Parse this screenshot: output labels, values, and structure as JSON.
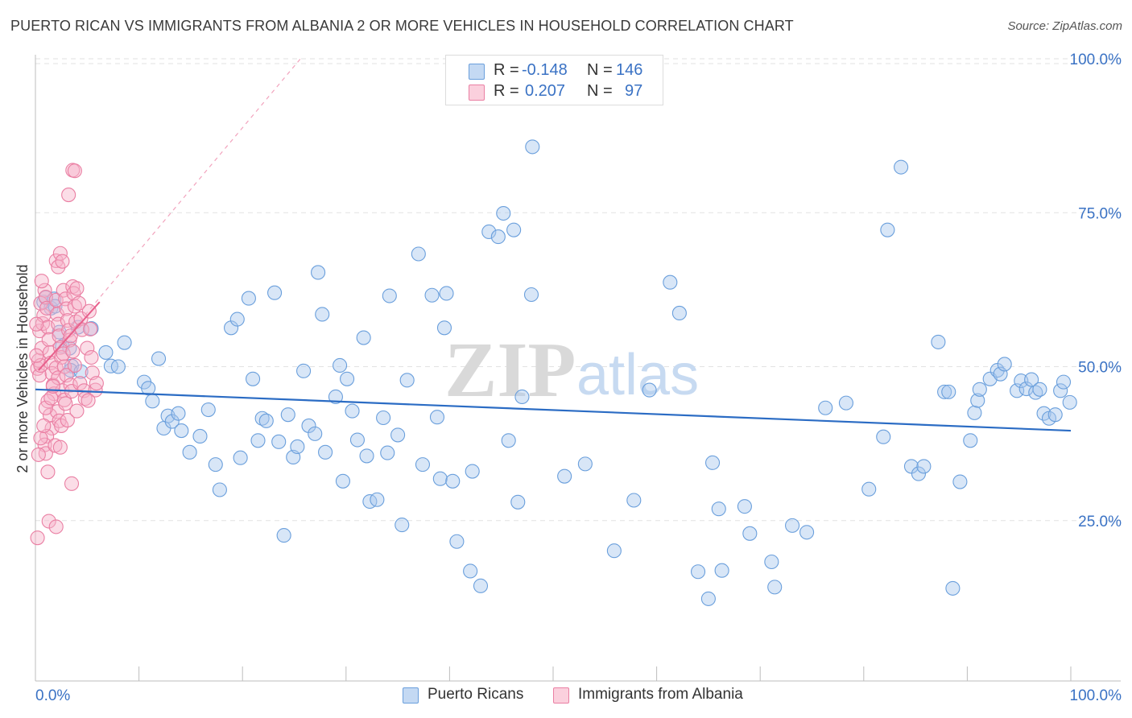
{
  "header": {
    "title": "PUERTO RICAN VS IMMIGRANTS FROM ALBANIA 2 OR MORE VEHICLES IN HOUSEHOLD CORRELATION CHART",
    "source": "Source: ZipAtlas.com"
  },
  "stats_legend": [
    {
      "r_label": "R =",
      "r_value": "-0.148",
      "n_label": "N =",
      "n_value": "146",
      "color": "#a9c8ee"
    },
    {
      "r_label": "R =",
      "r_value": "0.207",
      "n_label": "N =",
      "n_value": "97",
      "color": "#f6b4c9"
    }
  ],
  "watermark": {
    "zip": "ZIP",
    "atlas": "atlas"
  },
  "chart_data": {
    "type": "scatter",
    "title": "PUERTO RICAN VS IMMIGRANTS FROM ALBANIA 2 OR MORE VEHICLES IN HOUSEHOLD CORRELATION CHART",
    "xlabel": "",
    "ylabel": "2 or more Vehicles in Household",
    "xlim": [
      0,
      100
    ],
    "ylim": [
      0,
      100
    ],
    "x_tick_labels": [
      "0.0%",
      "100.0%"
    ],
    "y_tick_labels": [
      "100.0%",
      "75.0%",
      "50.0%",
      "25.0%"
    ],
    "y_ticks": [
      100,
      75,
      50,
      25
    ],
    "grid": "horizontal dashed",
    "legend_position": "bottom",
    "series": [
      {
        "name": "Puerto Ricans",
        "color": "#a9c8ee",
        "stroke": "#6a9fdc",
        "trend": {
          "x": [
            0,
            100
          ],
          "y": [
            46.3,
            39.6
          ],
          "color": "#2b6cc4"
        },
        "points": [
          [
            0.8,
            60.5
          ],
          [
            1.0,
            61.2
          ],
          [
            1.5,
            59.5
          ],
          [
            1.8,
            61.0
          ],
          [
            1.9,
            59.8
          ],
          [
            2.3,
            55.6
          ],
          [
            2.6,
            53.3
          ],
          [
            3.3,
            53.0
          ],
          [
            3.5,
            50.1
          ],
          [
            4.1,
            56.4
          ],
          [
            3.4,
            49.4
          ],
          [
            4.4,
            49.2
          ],
          [
            5.4,
            56.2
          ],
          [
            6.8,
            52.3
          ],
          [
            7.3,
            50.1
          ],
          [
            8.6,
            53.9
          ],
          [
            8.0,
            50.0
          ],
          [
            10.5,
            47.5
          ],
          [
            10.9,
            46.5
          ],
          [
            11.3,
            44.4
          ],
          [
            11.9,
            51.3
          ],
          [
            12.8,
            42.0
          ],
          [
            12.4,
            40.0
          ],
          [
            13.2,
            41.1
          ],
          [
            13.8,
            42.4
          ],
          [
            14.1,
            39.6
          ],
          [
            14.9,
            36.1
          ],
          [
            15.9,
            38.7
          ],
          [
            16.7,
            43.0
          ],
          [
            17.4,
            34.1
          ],
          [
            17.8,
            30.0
          ],
          [
            18.9,
            56.3
          ],
          [
            19.5,
            57.7
          ],
          [
            19.8,
            35.2
          ],
          [
            20.6,
            61.1
          ],
          [
            21.0,
            48.0
          ],
          [
            21.5,
            38.0
          ],
          [
            21.9,
            41.6
          ],
          [
            22.3,
            41.2
          ],
          [
            23.1,
            62.0
          ],
          [
            23.5,
            37.8
          ],
          [
            24.0,
            22.6
          ],
          [
            24.4,
            42.2
          ],
          [
            24.9,
            35.3
          ],
          [
            25.3,
            37.0
          ],
          [
            25.9,
            49.3
          ],
          [
            26.4,
            40.4
          ],
          [
            27.0,
            39.1
          ],
          [
            27.3,
            65.3
          ],
          [
            27.7,
            58.5
          ],
          [
            28.0,
            36.1
          ],
          [
            29.0,
            45.1
          ],
          [
            29.4,
            50.2
          ],
          [
            29.7,
            31.4
          ],
          [
            30.1,
            48.0
          ],
          [
            30.6,
            42.8
          ],
          [
            31.1,
            38.1
          ],
          [
            31.7,
            54.7
          ],
          [
            32.0,
            35.5
          ],
          [
            32.3,
            28.1
          ],
          [
            33.0,
            28.4
          ],
          [
            33.6,
            41.7
          ],
          [
            34.0,
            36.0
          ],
          [
            34.2,
            61.5
          ],
          [
            35.0,
            38.9
          ],
          [
            35.4,
            24.3
          ],
          [
            35.9,
            47.8
          ],
          [
            37.0,
            68.3
          ],
          [
            37.4,
            34.1
          ],
          [
            38.3,
            61.6
          ],
          [
            38.8,
            41.8
          ],
          [
            39.1,
            31.8
          ],
          [
            39.5,
            56.3
          ],
          [
            39.7,
            61.9
          ],
          [
            40.3,
            31.4
          ],
          [
            40.7,
            21.6
          ],
          [
            42.0,
            16.8
          ],
          [
            42.2,
            33.0
          ],
          [
            43.0,
            14.4
          ],
          [
            43.8,
            71.9
          ],
          [
            44.7,
            71.1
          ],
          [
            45.2,
            74.9
          ],
          [
            45.7,
            38.0
          ],
          [
            46.2,
            72.2
          ],
          [
            46.6,
            28.0
          ],
          [
            47.0,
            45.1
          ],
          [
            47.9,
            61.7
          ],
          [
            48.0,
            85.7
          ],
          [
            51.1,
            32.2
          ],
          [
            53.1,
            34.2
          ],
          [
            55.9,
            20.1
          ],
          [
            57.8,
            28.3
          ],
          [
            59.3,
            46.2
          ],
          [
            61.3,
            63.7
          ],
          [
            62.2,
            58.7
          ],
          [
            64.0,
            16.7
          ],
          [
            65.0,
            12.3
          ],
          [
            65.4,
            34.4
          ],
          [
            66.0,
            26.9
          ],
          [
            66.3,
            16.9
          ],
          [
            68.5,
            27.3
          ],
          [
            69.0,
            22.9
          ],
          [
            71.1,
            18.3
          ],
          [
            71.4,
            14.2
          ],
          [
            73.1,
            24.2
          ],
          [
            74.5,
            23.1
          ],
          [
            76.3,
            43.3
          ],
          [
            78.3,
            44.1
          ],
          [
            80.5,
            30.1
          ],
          [
            81.9,
            38.6
          ],
          [
            82.3,
            72.2
          ],
          [
            83.6,
            82.4
          ],
          [
            84.6,
            33.8
          ],
          [
            85.3,
            32.6
          ],
          [
            85.8,
            33.8
          ],
          [
            87.2,
            54.0
          ],
          [
            87.8,
            45.9
          ],
          [
            88.2,
            45.9
          ],
          [
            88.6,
            14.0
          ],
          [
            89.3,
            31.3
          ],
          [
            90.3,
            38.0
          ],
          [
            90.7,
            42.5
          ],
          [
            91.0,
            44.5
          ],
          [
            91.2,
            46.3
          ],
          [
            92.2,
            48.0
          ],
          [
            92.9,
            49.4
          ],
          [
            93.2,
            48.8
          ],
          [
            93.6,
            50.4
          ],
          [
            94.8,
            46.1
          ],
          [
            95.2,
            47.7
          ],
          [
            95.7,
            46.4
          ],
          [
            96.2,
            47.9
          ],
          [
            96.6,
            45.8
          ],
          [
            97.0,
            46.3
          ],
          [
            97.4,
            42.4
          ],
          [
            97.9,
            41.6
          ],
          [
            98.5,
            42.2
          ],
          [
            99.0,
            46.1
          ],
          [
            99.3,
            47.5
          ],
          [
            99.9,
            44.2
          ]
        ]
      },
      {
        "name": "Immigrants from Albania",
        "color": "#f6b4c9",
        "stroke": "#ea7fa3",
        "trend": {
          "x": [
            0.3,
            6.2
          ],
          "y": [
            49.4,
            60.5
          ],
          "color": "#e8608c",
          "extended_to": [
            25.6,
            100
          ]
        },
        "points": [
          [
            0.2,
            49.7
          ],
          [
            0.3,
            51.0
          ],
          [
            0.4,
            48.6
          ],
          [
            0.5,
            50.2
          ],
          [
            0.6,
            53.0
          ],
          [
            0.4,
            55.8
          ],
          [
            0.7,
            57.0
          ],
          [
            0.8,
            58.3
          ],
          [
            0.5,
            60.3
          ],
          [
            0.9,
            62.4
          ],
          [
            0.6,
            63.9
          ],
          [
            1.0,
            61.3
          ],
          [
            1.1,
            59.5
          ],
          [
            1.2,
            56.4
          ],
          [
            1.3,
            54.4
          ],
          [
            1.4,
            52.3
          ],
          [
            1.5,
            50.6
          ],
          [
            1.6,
            48.9
          ],
          [
            1.7,
            47.0
          ],
          [
            1.8,
            45.6
          ],
          [
            1.2,
            44.4
          ],
          [
            1.4,
            42.1
          ],
          [
            1.6,
            40.0
          ],
          [
            1.1,
            38.7
          ],
          [
            0.9,
            37.3
          ],
          [
            1.0,
            35.9
          ],
          [
            1.2,
            32.9
          ],
          [
            1.3,
            24.9
          ],
          [
            2.0,
            60.8
          ],
          [
            2.1,
            58.5
          ],
          [
            2.2,
            56.9
          ],
          [
            2.3,
            55.0
          ],
          [
            2.4,
            53.1
          ],
          [
            2.5,
            51.5
          ],
          [
            2.0,
            49.8
          ],
          [
            2.2,
            48.2
          ],
          [
            2.6,
            46.1
          ],
          [
            2.8,
            44.6
          ],
          [
            2.1,
            42.7
          ],
          [
            2.3,
            41.2
          ],
          [
            2.5,
            40.4
          ],
          [
            1.9,
            37.2
          ],
          [
            2.4,
            36.9
          ],
          [
            2.0,
            67.2
          ],
          [
            2.2,
            66.2
          ],
          [
            2.4,
            68.4
          ],
          [
            2.6,
            67.1
          ],
          [
            2.7,
            62.4
          ],
          [
            2.9,
            61.0
          ],
          [
            3.0,
            59.4
          ],
          [
            3.1,
            57.5
          ],
          [
            3.2,
            55.9
          ],
          [
            3.3,
            54.3
          ],
          [
            2.7,
            52.1
          ],
          [
            2.8,
            50.0
          ],
          [
            3.0,
            48.6
          ],
          [
            3.4,
            47.0
          ],
          [
            3.5,
            46.0
          ],
          [
            2.9,
            44.0
          ],
          [
            3.1,
            41.3
          ],
          [
            3.6,
            63.0
          ],
          [
            3.7,
            61.9
          ],
          [
            3.8,
            59.8
          ],
          [
            3.9,
            57.3
          ],
          [
            3.4,
            55.0
          ],
          [
            3.6,
            52.5
          ],
          [
            3.8,
            50.2
          ],
          [
            3.2,
            77.9
          ],
          [
            3.6,
            81.9
          ],
          [
            3.8,
            81.8
          ],
          [
            4.0,
            62.7
          ],
          [
            4.2,
            60.3
          ],
          [
            4.4,
            57.8
          ],
          [
            4.5,
            56.0
          ],
          [
            4.3,
            47.3
          ],
          [
            4.7,
            46.1
          ],
          [
            4.8,
            44.8
          ],
          [
            4.0,
            42.8
          ],
          [
            5.2,
            59.0
          ],
          [
            5.3,
            56.1
          ],
          [
            5.0,
            53.0
          ],
          [
            5.4,
            51.5
          ],
          [
            5.5,
            49.0
          ],
          [
            5.8,
            46.2
          ],
          [
            5.9,
            47.3
          ],
          [
            5.1,
            44.5
          ],
          [
            3.5,
            31.0
          ],
          [
            2.0,
            24.0
          ],
          [
            0.2,
            22.2
          ],
          [
            0.3,
            35.7
          ],
          [
            0.5,
            38.4
          ],
          [
            0.8,
            40.4
          ],
          [
            1.0,
            43.3
          ],
          [
            1.5,
            44.9
          ],
          [
            1.7,
            46.8
          ],
          [
            0.1,
            51.8
          ],
          [
            0.1,
            56.9
          ]
        ]
      }
    ]
  }
}
